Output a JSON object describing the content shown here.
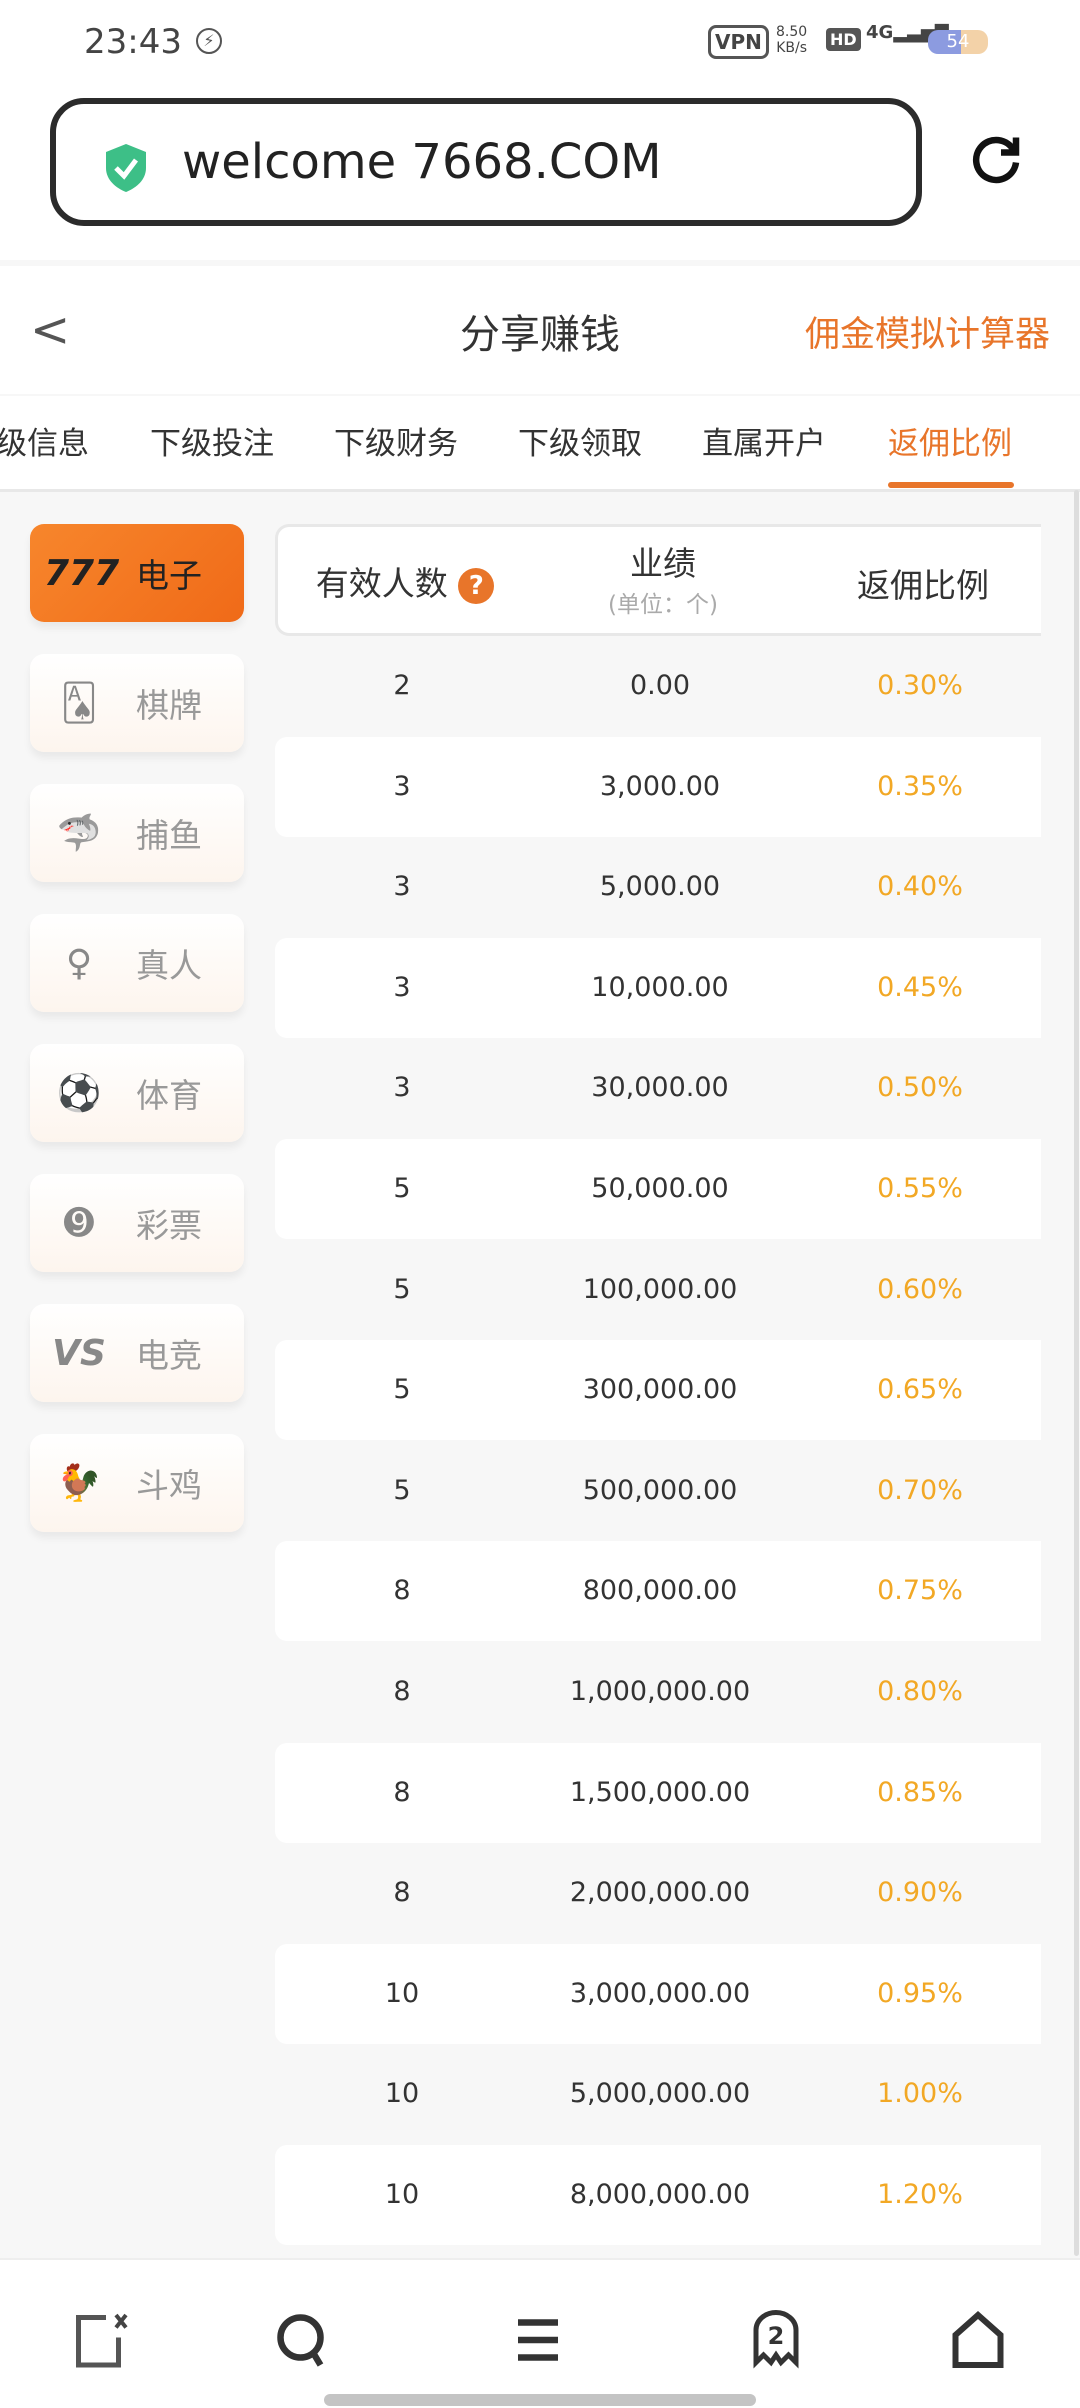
{
  "status": {
    "time": "23:43",
    "vpn": "VPN",
    "speed_value": "8.50",
    "speed_unit": "KB/s",
    "hd": "HD",
    "network": "4G",
    "battery": "54"
  },
  "browser": {
    "url": "welcome 7668.COM"
  },
  "header": {
    "title": "分享赚钱",
    "action": "佣金模拟计算器"
  },
  "tabs": [
    {
      "label": "级信息"
    },
    {
      "label": "下级投注"
    },
    {
      "label": "下级财务"
    },
    {
      "label": "下级领取"
    },
    {
      "label": "直属开户"
    },
    {
      "label": "返佣比例",
      "active": true
    }
  ],
  "sidebar": [
    {
      "label": "电子",
      "icon": "777-slot-icon",
      "active": true
    },
    {
      "label": "棋牌",
      "icon": "cards-icon"
    },
    {
      "label": "捕鱼",
      "icon": "shark-icon"
    },
    {
      "label": "真人",
      "icon": "woman-icon"
    },
    {
      "label": "体育",
      "icon": "soccer-ball-icon"
    },
    {
      "label": "彩票",
      "icon": "lottery-ball-icon"
    },
    {
      "label": "电竞",
      "icon": "vs-icon"
    },
    {
      "label": "斗鸡",
      "icon": "rooster-icon"
    }
  ],
  "table": {
    "headers": {
      "count": "有效人数",
      "performance": "业绩",
      "performance_unit": "(单位：个)",
      "rate": "返佣比例"
    },
    "rows": [
      [
        "2",
        "0.00",
        "0.30%"
      ],
      [
        "3",
        "3,000.00",
        "0.35%"
      ],
      [
        "3",
        "5,000.00",
        "0.40%"
      ],
      [
        "3",
        "10,000.00",
        "0.45%"
      ],
      [
        "3",
        "30,000.00",
        "0.50%"
      ],
      [
        "5",
        "50,000.00",
        "0.55%"
      ],
      [
        "5",
        "100,000.00",
        "0.60%"
      ],
      [
        "5",
        "300,000.00",
        "0.65%"
      ],
      [
        "5",
        "500,000.00",
        "0.70%"
      ],
      [
        "8",
        "800,000.00",
        "0.75%"
      ],
      [
        "8",
        "1,000,000.00",
        "0.80%"
      ],
      [
        "8",
        "1,500,000.00",
        "0.85%"
      ],
      [
        "8",
        "2,000,000.00",
        "0.90%"
      ],
      [
        "10",
        "3,000,000.00",
        "0.95%"
      ],
      [
        "10",
        "5,000,000.00",
        "1.00%"
      ],
      [
        "10",
        "8,000,000.00",
        "1.20%"
      ]
    ]
  },
  "bottom_nav": {
    "tabs_count": "2"
  },
  "colors": {
    "accent": "#e8752a",
    "rate": "#f2a825"
  }
}
